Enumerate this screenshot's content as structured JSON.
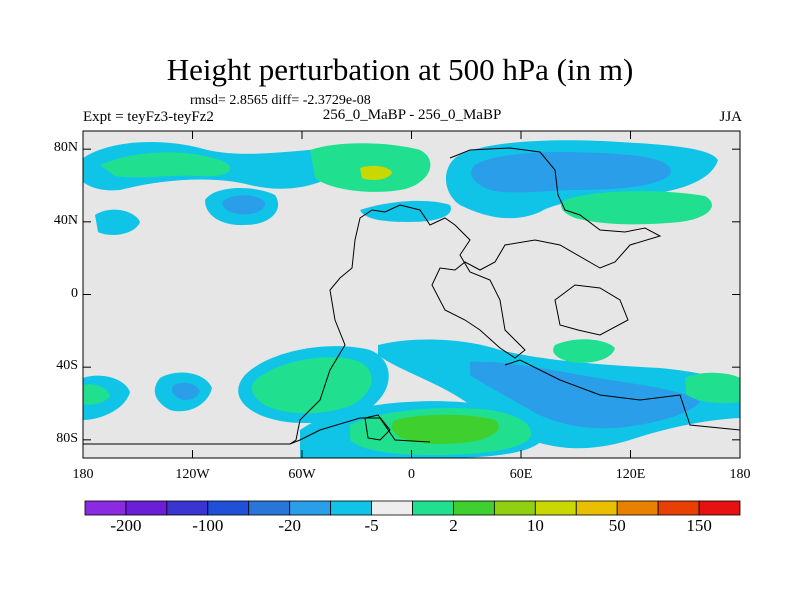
{
  "title": "Height perturbation at 500 hPa (in m)",
  "stats": "rmsd= 2.8565  diff= -2.3729e-08",
  "expt": "Expt = teyFz3-teyFz2",
  "center_label": "256_0_MaBP - 256_0_MaBP",
  "season": "JJA",
  "map": {
    "lon_range": [
      -180,
      180
    ],
    "lat_range": [
      -90,
      90
    ],
    "lat_ticks": [
      {
        "value": 80,
        "label": "80N"
      },
      {
        "value": 40,
        "label": "40N"
      },
      {
        "value": 0,
        "label": "0"
      },
      {
        "value": -40,
        "label": "40S"
      },
      {
        "value": -80,
        "label": "80S"
      }
    ],
    "lon_ticks": [
      {
        "value": -180,
        "label": "180"
      },
      {
        "value": -120,
        "label": "120W"
      },
      {
        "value": -60,
        "label": "60W"
      },
      {
        "value": 0,
        "label": "0"
      },
      {
        "value": 60,
        "label": "60E"
      },
      {
        "value": 120,
        "label": "120E"
      },
      {
        "value": 180,
        "label": "180"
      }
    ],
    "background_color": "#e6e6e6"
  },
  "colorbar": {
    "colors": [
      "#8a2be2",
      "#6a1fd6",
      "#3a34d0",
      "#2050d8",
      "#2a76d8",
      "#2a9ee8",
      "#10c4e8",
      "#eeeeee",
      "#20e090",
      "#3fd030",
      "#90d010",
      "#c8d800",
      "#e8c000",
      "#e88000",
      "#e84000",
      "#e81010"
    ],
    "labels": [
      "-200",
      "-100",
      "-20",
      "-5",
      "2",
      "10",
      "50",
      "150"
    ]
  },
  "regions": [
    {
      "name": "North Pacific green high",
      "color": "#20e090",
      "lon": [
        -180,
        -100
      ],
      "lat": [
        60,
        80
      ]
    },
    {
      "name": "North Atlantic green high",
      "color": "#20e090",
      "lon": [
        -70,
        -10
      ],
      "lat": [
        55,
        85
      ]
    },
    {
      "name": "North Atlantic core",
      "color": "#c8d800",
      "lon": [
        -45,
        -30
      ],
      "lat": [
        66,
        74
      ]
    },
    {
      "name": "North Pacific low",
      "color": "#10c4e8",
      "lon": [
        -110,
        -80
      ],
      "lat": [
        40,
        60
      ]
    },
    {
      "name": "Eurasia low",
      "color": "#2a9ee8",
      "lon": [
        35,
        130
      ],
      "lat": [
        60,
        85
      ]
    },
    {
      "name": "Eurasia green",
      "color": "#20e090",
      "lon": [
        85,
        155
      ],
      "lat": [
        40,
        55
      ]
    },
    {
      "name": "Southern Ocean low",
      "color": "#2a9ee8",
      "lon": [
        45,
        155
      ],
      "lat": [
        -80,
        -40
      ]
    },
    {
      "name": "South Atlantic green high",
      "color": "#20e090",
      "lon": [
        -90,
        -20
      ],
      "lat": [
        -70,
        -30
      ]
    },
    {
      "name": "Antarctic green high",
      "color": "#3fd030",
      "lon": [
        -20,
        60
      ],
      "lat": [
        -90,
        -60
      ]
    },
    {
      "name": "South Pacific low",
      "color": "#10c4e8",
      "lon": [
        -150,
        -110
      ],
      "lat": [
        -65,
        -40
      ]
    }
  ]
}
